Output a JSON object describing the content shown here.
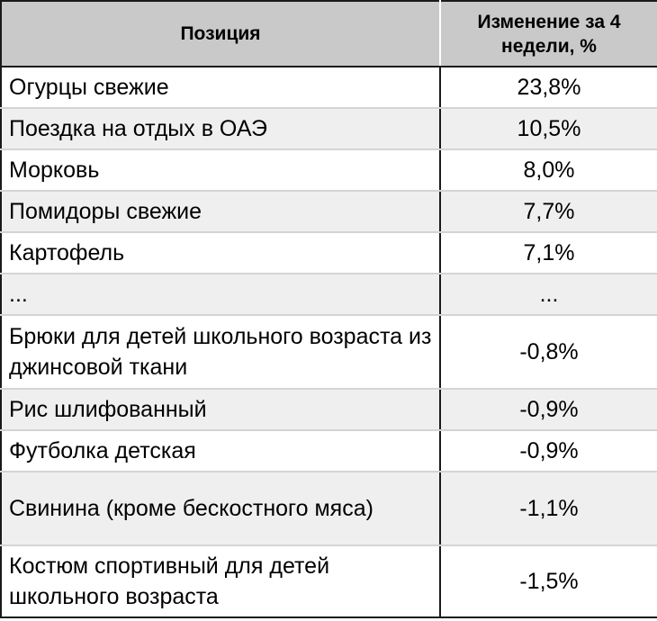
{
  "table": {
    "headers": {
      "position": "Позиция",
      "change": "Изменение за 4 недели, %"
    },
    "rows": [
      {
        "position": "Огурцы свежие",
        "change": "23,8%"
      },
      {
        "position": "Поездка на отдых в ОАЭ",
        "change": "10,5%"
      },
      {
        "position": "Морковь",
        "change": "8,0%"
      },
      {
        "position": "Помидоры свежие",
        "change": "7,7%"
      },
      {
        "position": "Картофель",
        "change": "7,1%"
      },
      {
        "position": "...",
        "change": "..."
      },
      {
        "position": "Брюки для детей школьного возраста из джинсовой ткани",
        "change": "-0,8%"
      },
      {
        "position": "Рис шлифованный",
        "change": "-0,9%"
      },
      {
        "position": "Футболка детская",
        "change": "-0,9%"
      },
      {
        "position": "Свинина (кроме бескостного мяса)",
        "change": "-1,1%"
      },
      {
        "position": "Костюм спортивный для детей школьного возраста",
        "change": "-1,5%"
      }
    ]
  },
  "colors": {
    "header_background": "#c9c9c9",
    "stripe_background": "#efefef",
    "border": "#1a1a1a"
  }
}
